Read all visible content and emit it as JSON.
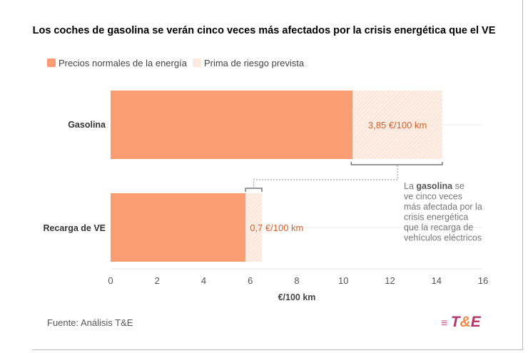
{
  "chart_data": {
    "type": "bar",
    "orientation": "horizontal",
    "stacked": true,
    "title": "Los coches de gasolina se verán cinco veces más afectados por la crisis energética que el VE",
    "categories": [
      "Gasolina",
      "Recarga de VE"
    ],
    "series": [
      {
        "name": "Precios normales de la energía",
        "values": [
          10.4,
          5.8
        ],
        "color": "#fb9d73"
      },
      {
        "name": "Prima de riesgo prevista",
        "values": [
          3.85,
          0.7
        ],
        "color": "#fde9dd"
      }
    ],
    "data_labels": [
      "3,85 €/100 km",
      "0,7 €/100 km"
    ],
    "xlabel": "€/100 km",
    "xlim": [
      0,
      16
    ],
    "xticks": [
      0,
      2,
      4,
      6,
      8,
      10,
      12,
      14,
      16
    ],
    "annotation": {
      "pre": "La ",
      "bold": "gasolina",
      "post": " se ve cinco veces más afectada por la crisis energética que la recarga de vehículos eléctricos"
    },
    "legend": "top-left"
  },
  "source": "Fuente: Análisis T&E",
  "logo": {
    "t": "T",
    "amp": "&",
    "e": "E"
  }
}
